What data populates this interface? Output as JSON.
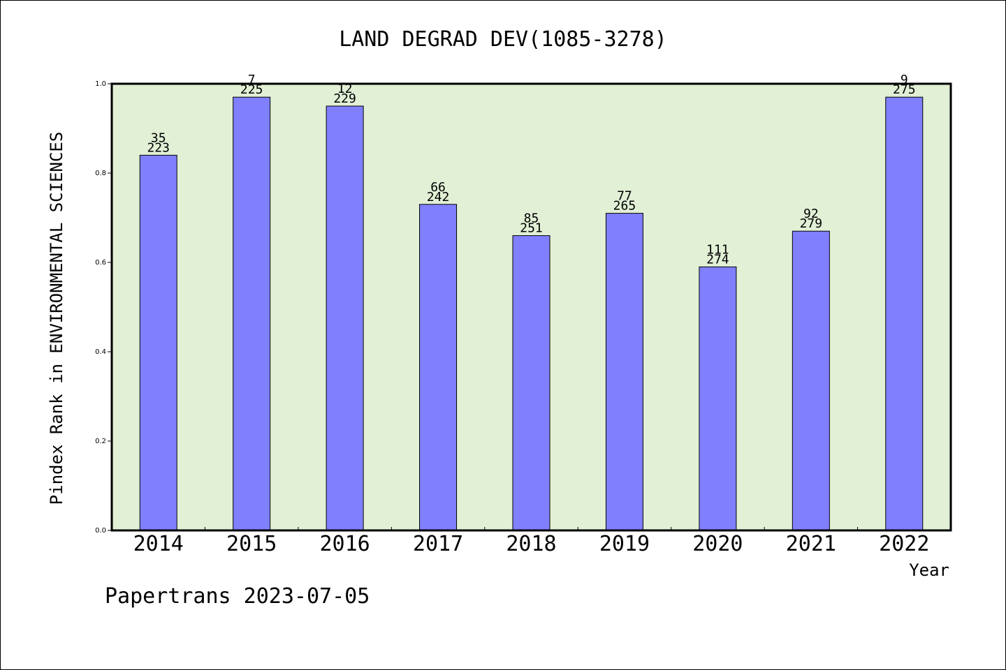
{
  "chart_data": {
    "type": "bar",
    "title": "LAND DEGRAD DEV(1085-3278)",
    "xlabel": "Year",
    "ylabel": "Pindex Rank in ENVIRONMENTAL SCIENCES",
    "ylim": [
      0,
      1.0
    ],
    "yticks": [
      "0.0",
      "0.2",
      "0.4",
      "0.6",
      "0.8",
      "1.0"
    ],
    "categories": [
      "2014",
      "2015",
      "2016",
      "2017",
      "2018",
      "2019",
      "2020",
      "2021",
      "2022"
    ],
    "values": [
      0.84,
      0.97,
      0.95,
      0.73,
      0.66,
      0.71,
      0.59,
      0.67,
      0.97
    ],
    "rank_labels": [
      "35",
      "7",
      "12",
      "66",
      "85",
      "77",
      "111",
      "92",
      "9"
    ],
    "total_labels": [
      "223",
      "225",
      "229",
      "242",
      "251",
      "265",
      "274",
      "279",
      "275"
    ],
    "bar_color": "#8080ff",
    "plot_background": "#e2f0d6",
    "grid": false
  },
  "footer": "Papertrans 2023-07-05"
}
